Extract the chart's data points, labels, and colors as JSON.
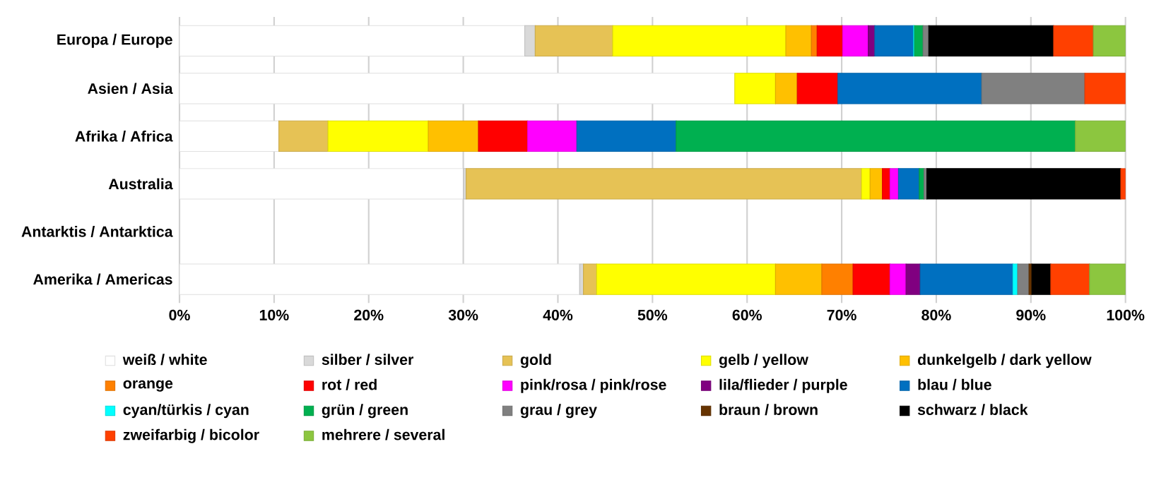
{
  "chart_data": {
    "type": "bar",
    "orientation": "horizontal",
    "stacked": true,
    "categories": [
      "Europa / Europe",
      "Asien / Asia",
      "Afrika / Africa",
      "Australia",
      "Antarktis / Antarktica",
      "Amerika / Americas"
    ],
    "series": [
      {
        "name": "weiß / white",
        "color": "#ffffff",
        "values": [
          36.5,
          58.7,
          10.5,
          30.0,
          null,
          42.3
        ]
      },
      {
        "name": "silber / silver",
        "color": "#d9d9d9",
        "values": [
          1.1,
          null,
          null,
          0.3,
          null,
          0.4
        ]
      },
      {
        "name": "gold",
        "color": "#e6c255",
        "values": [
          8.2,
          null,
          5.2,
          41.8,
          null,
          1.4
        ]
      },
      {
        "name": "gelb / yellow",
        "color": "#ffff00",
        "values": [
          18.3,
          4.3,
          10.6,
          0.9,
          null,
          18.9
        ]
      },
      {
        "name": "dunkelgelb / dark yellow",
        "color": "#ffc000",
        "values": [
          2.7,
          2.3,
          5.3,
          1.3,
          null,
          4.9
        ]
      },
      {
        "name": "orange",
        "color": "#ff8000",
        "values": [
          0.6,
          null,
          null,
          null,
          null,
          3.3
        ]
      },
      {
        "name": "rot / red",
        "color": "#ff0000",
        "values": [
          2.7,
          4.3,
          5.2,
          0.8,
          null,
          3.9
        ]
      },
      {
        "name": "pink/rosa / pink/rose",
        "color": "#ff00ff",
        "values": [
          2.7,
          null,
          5.2,
          0.9,
          null,
          1.7
        ]
      },
      {
        "name": "lila/flieder / purple",
        "color": "#800080",
        "values": [
          0.7,
          null,
          null,
          null,
          null,
          1.5
        ]
      },
      {
        "name": "blau / blue",
        "color": "#0070c0",
        "values": [
          4.1,
          15.2,
          10.5,
          2.2,
          null,
          9.8
        ]
      },
      {
        "name": "cyan/türkis / cyan",
        "color": "#00ffff",
        "values": [
          0.1,
          null,
          null,
          null,
          null,
          0.5
        ]
      },
      {
        "name": "grün / green",
        "color": "#00b050",
        "values": [
          0.9,
          null,
          42.2,
          0.5,
          null,
          null
        ]
      },
      {
        "name": "grau / grey",
        "color": "#808080",
        "values": [
          0.6,
          10.9,
          null,
          0.3,
          null,
          1.2
        ]
      },
      {
        "name": "braun / brown",
        "color": "#663300",
        "values": [
          null,
          null,
          null,
          null,
          null,
          0.3
        ]
      },
      {
        "name": "schwarz / black",
        "color": "#000000",
        "values": [
          13.2,
          null,
          null,
          20.5,
          null,
          2.0
        ]
      },
      {
        "name": "zweifarbig / bicolor",
        "color": "#ff4000",
        "values": [
          4.2,
          4.3,
          null,
          0.5,
          null,
          4.1
        ]
      },
      {
        "name": "mehrere / several",
        "color": "#8cc63f",
        "values": [
          3.4,
          null,
          5.3,
          null,
          null,
          3.8
        ]
      }
    ],
    "xlim": [
      0,
      100
    ],
    "xticks": [
      {
        "value": 0,
        "label": "0%"
      },
      {
        "value": 10,
        "label": "10%"
      },
      {
        "value": 20,
        "label": "20%"
      },
      {
        "value": 30,
        "label": "30%"
      },
      {
        "value": 40,
        "label": "40%"
      },
      {
        "value": 50,
        "label": "50%"
      },
      {
        "value": 60,
        "label": "60%"
      },
      {
        "value": 70,
        "label": "70%"
      },
      {
        "value": 80,
        "label": "80%"
      },
      {
        "value": 90,
        "label": "90%"
      },
      {
        "value": 100,
        "label": "100%"
      }
    ],
    "grid": "x",
    "legend": "bottom"
  }
}
